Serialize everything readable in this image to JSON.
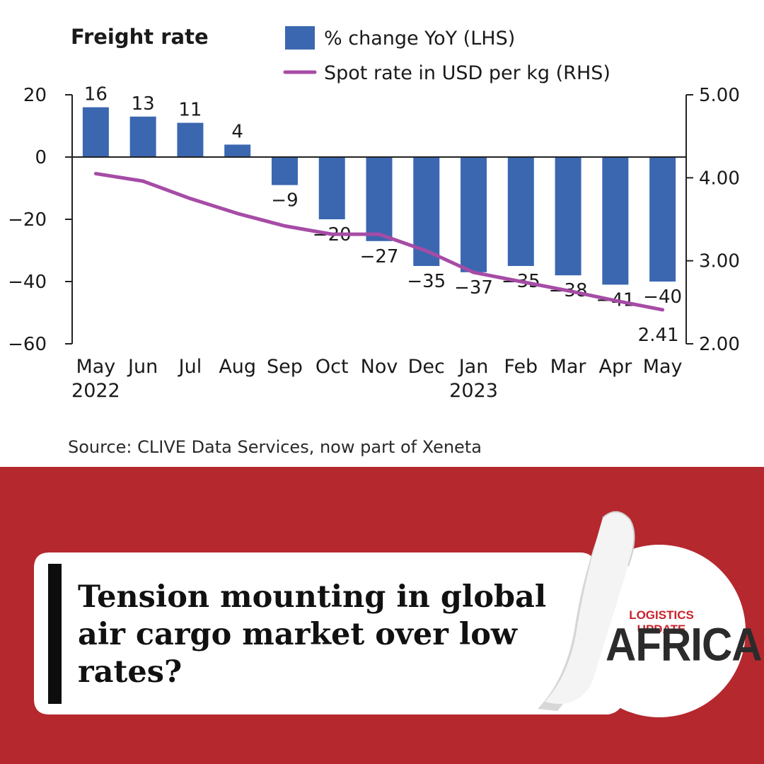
{
  "chart_data": {
    "type": "bar",
    "title": "Freight rate",
    "categories": [
      "May",
      "Jun",
      "Jul",
      "Aug",
      "Sep",
      "Oct",
      "Nov",
      "Dec",
      "Jan",
      "Feb",
      "Mar",
      "Apr",
      "May"
    ],
    "year_labels": [
      {
        "index": 0,
        "label": "2022"
      },
      {
        "index": 8,
        "label": "2023"
      }
    ],
    "series": [
      {
        "name": "% change YoY (LHS)",
        "type": "bar",
        "axis": "left",
        "color": "#3b67b0",
        "values": [
          16,
          13,
          11,
          4,
          -9,
          -20,
          -27,
          -35,
          -37,
          -35,
          -38,
          -41,
          -40
        ],
        "labels": [
          "16",
          "13",
          "11",
          "4",
          "-9",
          "-20",
          "-27",
          "-35",
          "-37",
          "-35",
          "-38",
          "-41",
          "-40"
        ]
      },
      {
        "name": "Spot rate in USD per kg (RHS)",
        "type": "line",
        "axis": "right",
        "color": "#a64ca6",
        "values": [
          4.05,
          3.96,
          3.75,
          3.57,
          3.42,
          3.32,
          3.32,
          3.12,
          2.86,
          2.75,
          2.64,
          2.52,
          2.41
        ],
        "end_label": "2.41"
      }
    ],
    "y_left": {
      "min": -60,
      "max": 20,
      "ticks": [
        20,
        0,
        -20,
        -40,
        -60
      ],
      "tick_labels": [
        "20",
        "0",
        "-20",
        "-40",
        "-60"
      ]
    },
    "y_right": {
      "min": 2.0,
      "max": 5.0,
      "ticks": [
        5,
        4,
        3,
        2
      ],
      "tick_labels": [
        "5.00",
        "4.00",
        "3.00",
        "2.00"
      ]
    },
    "grid": false,
    "legend_position": "top"
  },
  "source": "Source: CLIVE Data Services, now part of Xeneta",
  "headline": "Tension mounting in global air cargo market over low rates?",
  "logo": {
    "top": "LOGISTICS UPDATE",
    "main": "AFRICA"
  },
  "colors": {
    "banner": "#b5282e",
    "bar": "#3b67b0",
    "line": "#a64ca6"
  }
}
